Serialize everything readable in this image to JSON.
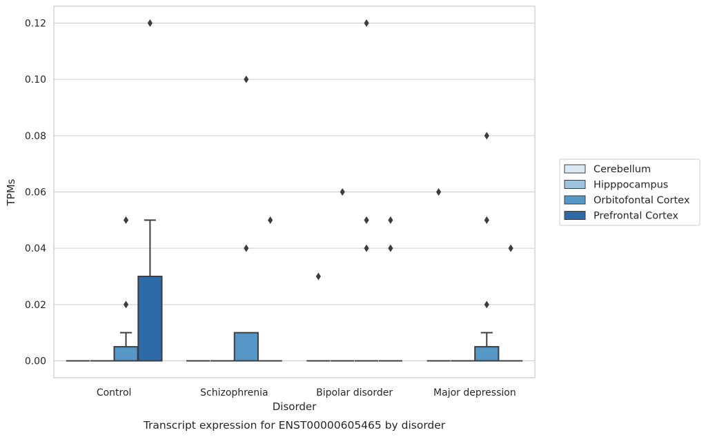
{
  "chart_data": {
    "type": "box",
    "title": "",
    "caption": "Transcript expression for ENST00000605465 by disorder",
    "xlabel": "Disorder",
    "ylabel": "TPMs",
    "ylim": [
      -0.006,
      0.126
    ],
    "yticks": [
      "0.00",
      "0.02",
      "0.04",
      "0.06",
      "0.08",
      "0.10",
      "0.12"
    ],
    "ytick_values": [
      0,
      0.02,
      0.04,
      0.06,
      0.08,
      0.1,
      0.12
    ],
    "grid": true,
    "legend_position": "right",
    "categories": [
      "Control",
      "Schizophrenia",
      "Bipolar disorder",
      "Major depression"
    ],
    "series": [
      {
        "name": "Cerebellum",
        "color": "#dae8f5",
        "boxes": [
          {
            "q1": 0,
            "median": 0,
            "q3": 0,
            "whislo": 0,
            "whishi": 0,
            "fliers": []
          },
          {
            "q1": 0,
            "median": 0,
            "q3": 0,
            "whislo": 0,
            "whishi": 0,
            "fliers": []
          },
          {
            "q1": 0,
            "median": 0,
            "q3": 0,
            "whislo": 0,
            "whishi": 0,
            "fliers": [
              0.03
            ]
          },
          {
            "q1": 0,
            "median": 0,
            "q3": 0,
            "whislo": 0,
            "whishi": 0,
            "fliers": [
              0.06
            ]
          }
        ]
      },
      {
        "name": "Hipppocampus",
        "color": "#9dc3de",
        "boxes": [
          {
            "q1": 0,
            "median": 0,
            "q3": 0,
            "whislo": 0,
            "whishi": 0,
            "fliers": []
          },
          {
            "q1": 0,
            "median": 0,
            "q3": 0,
            "whislo": 0,
            "whishi": 0,
            "fliers": []
          },
          {
            "q1": 0,
            "median": 0,
            "q3": 0,
            "whislo": 0,
            "whishi": 0,
            "fliers": [
              0.06
            ]
          },
          {
            "q1": 0,
            "median": 0,
            "q3": 0,
            "whislo": 0,
            "whishi": 0,
            "fliers": []
          }
        ]
      },
      {
        "name": "Orbitofontal Cortex",
        "color": "#5697c7",
        "boxes": [
          {
            "q1": 0,
            "median": 0,
            "q3": 0.005,
            "whislo": 0,
            "whishi": 0.01,
            "fliers": [
              0.02,
              0.05
            ]
          },
          {
            "q1": 0,
            "median": 0,
            "q3": 0.01,
            "whislo": 0,
            "whishi": 0.01,
            "fliers": [
              0.04,
              0.1
            ]
          },
          {
            "q1": 0,
            "median": 0,
            "q3": 0,
            "whislo": 0,
            "whishi": 0,
            "fliers": [
              0.04,
              0.05,
              0.12
            ]
          },
          {
            "q1": 0,
            "median": 0,
            "q3": 0.005,
            "whislo": 0,
            "whishi": 0.01,
            "fliers": [
              0.02,
              0.05,
              0.08
            ]
          }
        ]
      },
      {
        "name": "Prefrontal Cortex",
        "color": "#2e69a8",
        "boxes": [
          {
            "q1": 0,
            "median": 0,
            "q3": 0.03,
            "whislo": 0,
            "whishi": 0.05,
            "fliers": [
              0.12
            ]
          },
          {
            "q1": 0,
            "median": 0,
            "q3": 0,
            "whislo": 0,
            "whishi": 0,
            "fliers": [
              0.05
            ]
          },
          {
            "q1": 0,
            "median": 0,
            "q3": 0,
            "whislo": 0,
            "whishi": 0,
            "fliers": [
              0.04,
              0.05
            ]
          },
          {
            "q1": 0,
            "median": 0,
            "q3": 0,
            "whislo": 0,
            "whishi": 0,
            "fliers": [
              0.04
            ]
          }
        ]
      }
    ]
  }
}
